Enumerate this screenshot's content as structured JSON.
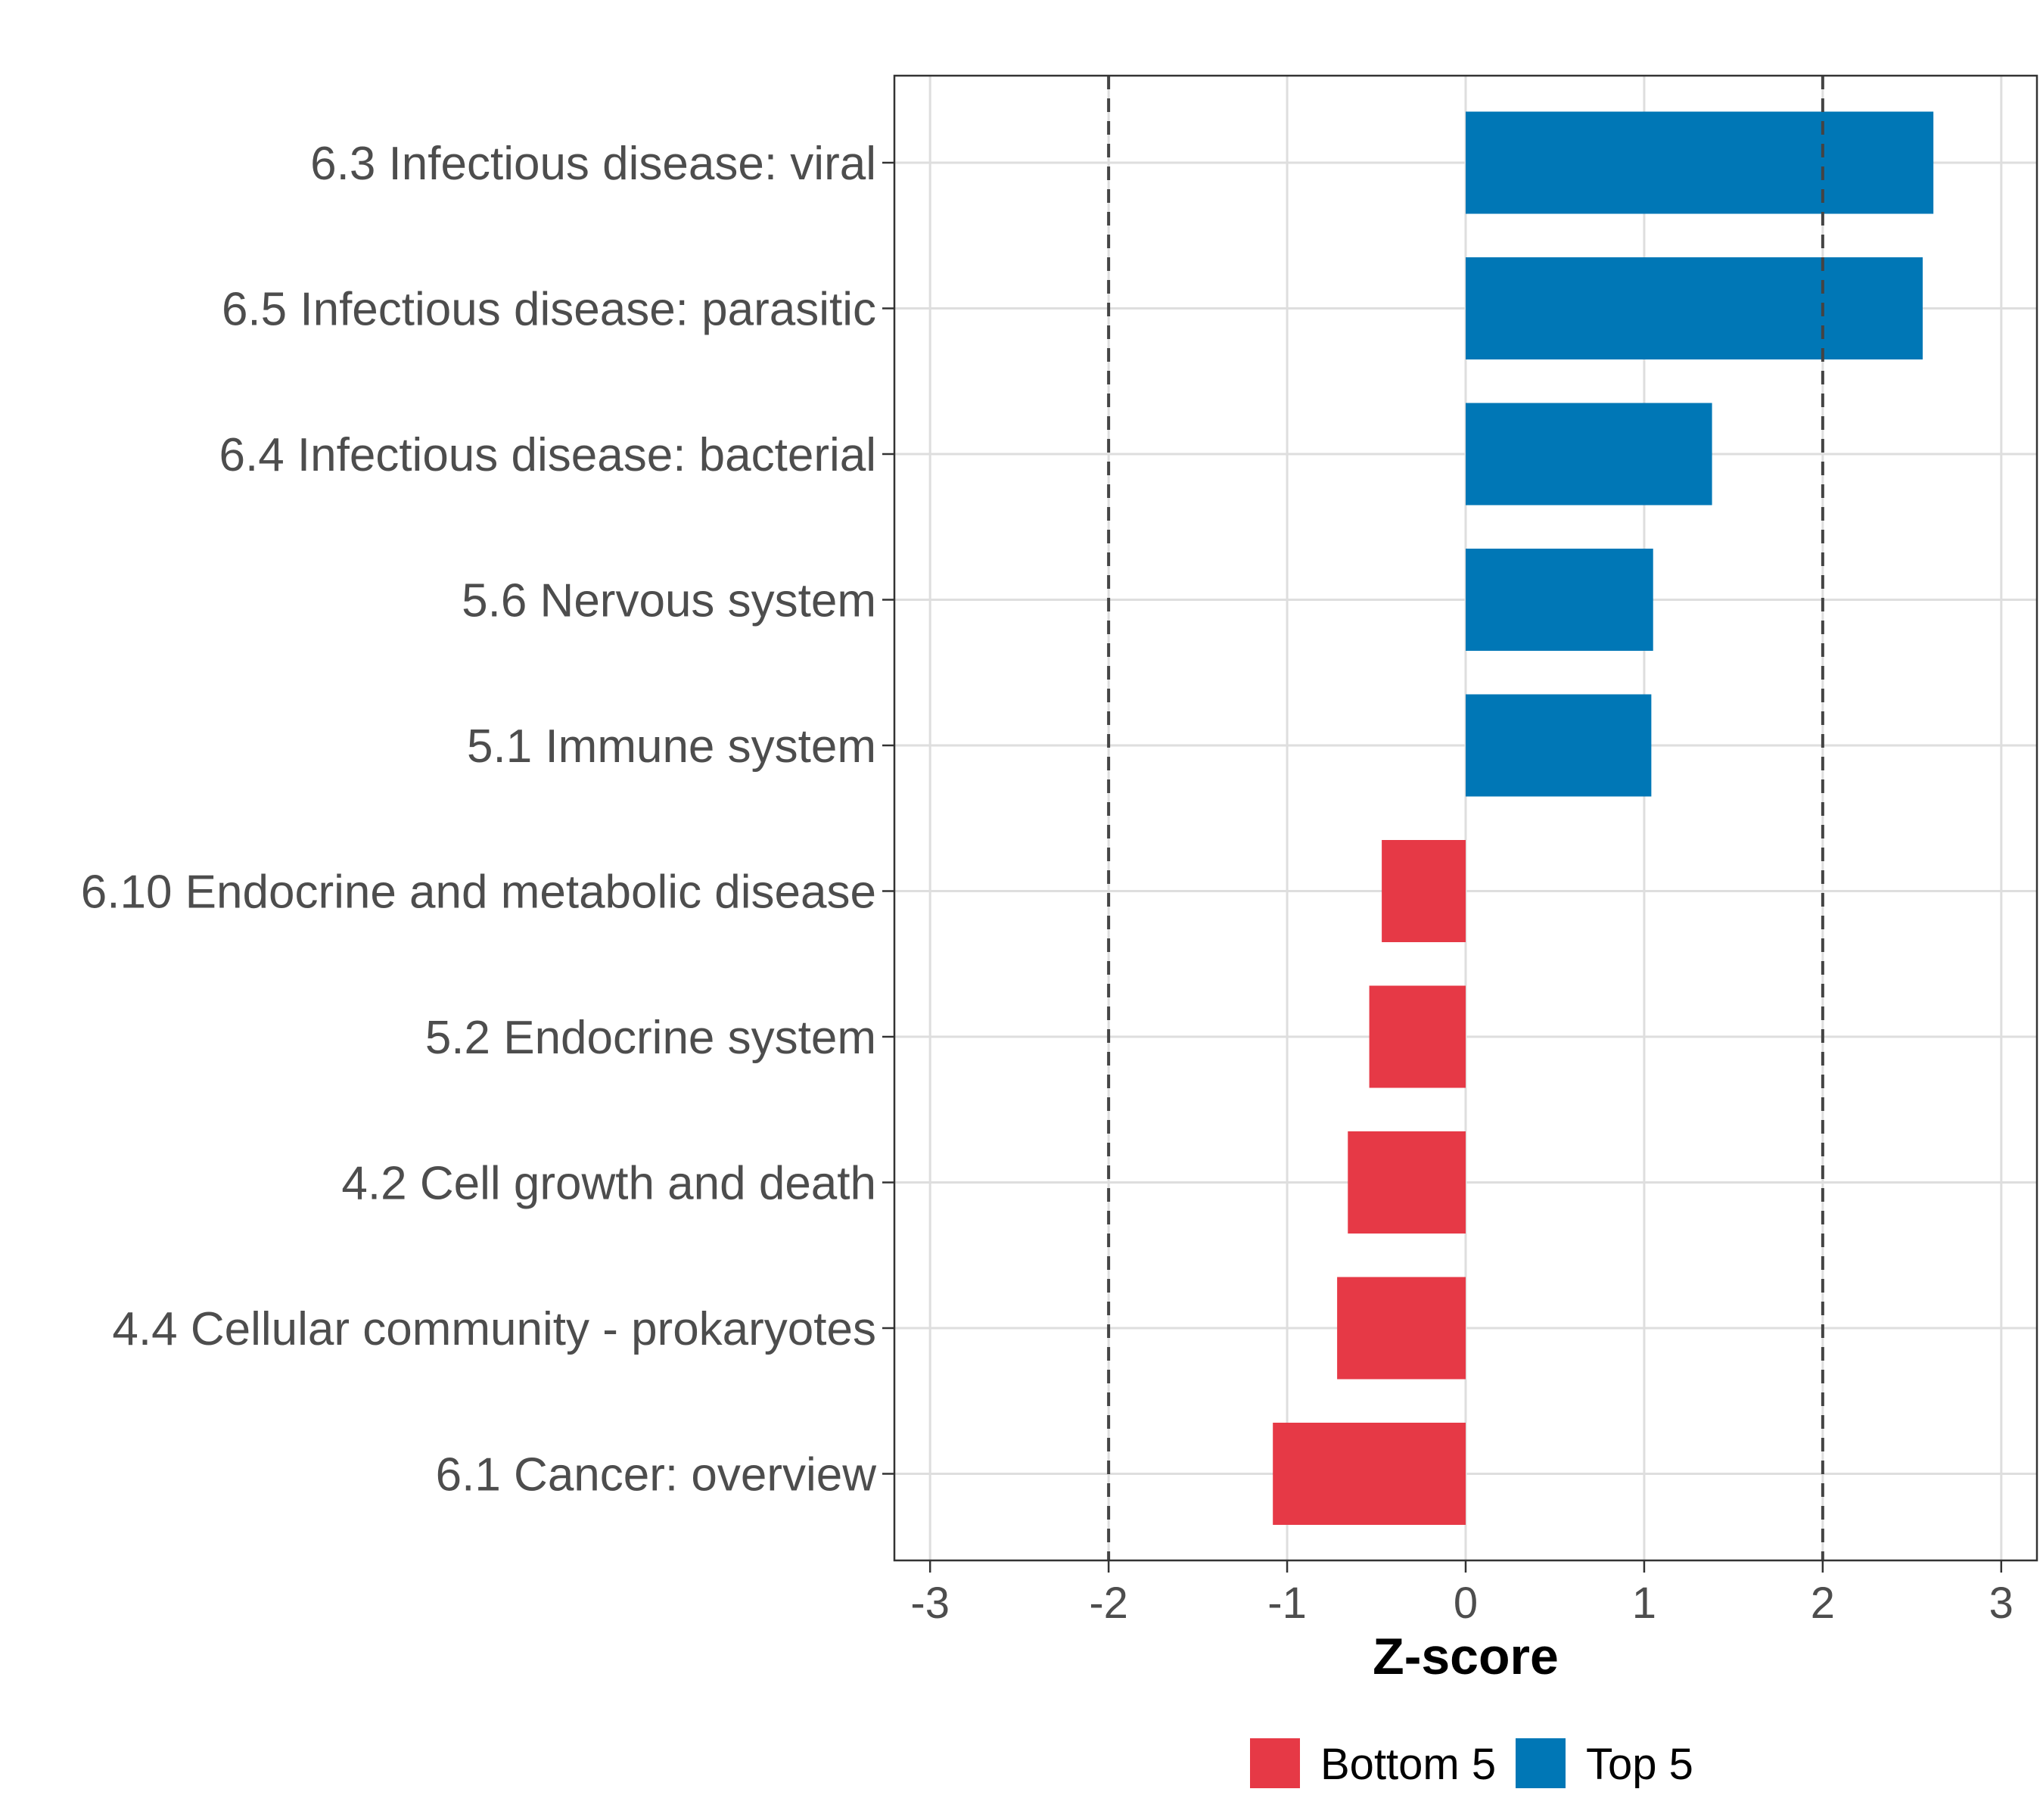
{
  "chart_data": {
    "type": "bar",
    "orientation": "horizontal",
    "categories": [
      "6.3 Infectious disease: viral",
      "6.5 Infectious disease: parasitic",
      "6.4 Infectious disease: bacterial",
      "5.6 Nervous system",
      "5.1 Immune system",
      "6.10 Endocrine and metabolic disease",
      "5.2 Endocrine system",
      "4.2 Cell growth and death",
      "4.4 Cellular community - prokaryotes",
      "6.1 Cancer: overview"
    ],
    "values": [
      2.62,
      2.56,
      1.38,
      1.05,
      1.04,
      -0.47,
      -0.54,
      -0.66,
      -0.72,
      -1.08
    ],
    "groups": [
      "Top 5",
      "Top 5",
      "Top 5",
      "Top 5",
      "Top 5",
      "Bottom 5",
      "Bottom 5",
      "Bottom 5",
      "Bottom 5",
      "Bottom 5"
    ],
    "xlabel": "Z-score",
    "ylabel": "",
    "xlim": [
      -3.2,
      3.2
    ],
    "xticks": [
      -3,
      -2,
      -1,
      0,
      1,
      2,
      3
    ],
    "reference_lines": [
      -2,
      2
    ],
    "grid": true,
    "legend": {
      "position": "bottom",
      "entries": [
        {
          "label": "Bottom 5",
          "color": "#e63946"
        },
        {
          "label": "Top 5",
          "color": "#0077b6"
        }
      ]
    },
    "colors": {
      "Top 5": "#0077b6",
      "Bottom 5": "#e63946"
    }
  }
}
